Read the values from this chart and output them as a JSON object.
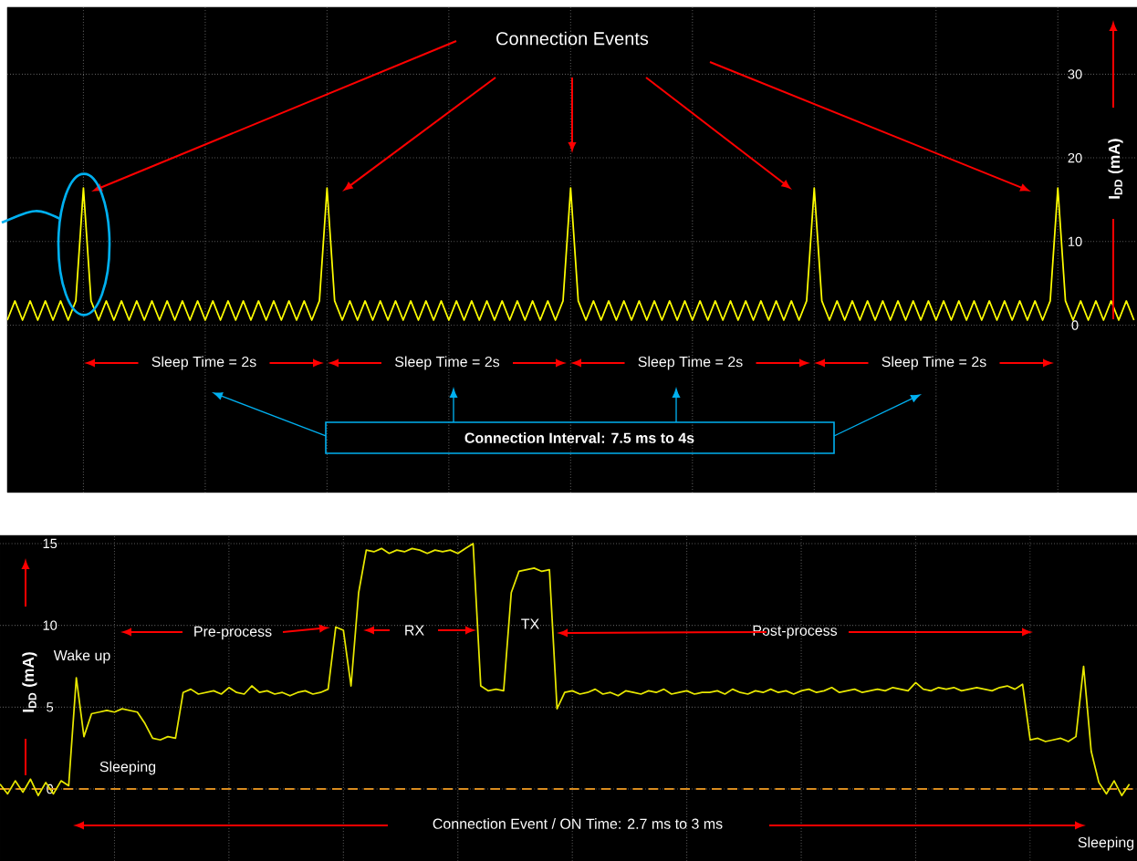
{
  "chart_data": [
    {
      "type": "line",
      "categories": [
        null,
        null,
        null,
        null,
        null,
        null,
        null,
        null,
        null,
        null,
        null,
        null,
        null,
        null,
        null,
        null,
        null,
        null,
        null,
        null,
        null,
        null,
        null,
        null,
        null,
        null,
        null,
        null,
        null,
        null,
        null,
        null,
        null,
        null,
        null,
        null,
        null,
        null,
        null,
        null,
        null,
        null,
        null,
        null,
        null,
        null,
        null,
        null,
        null,
        null,
        null,
        null,
        null,
        null,
        null,
        null,
        null,
        null,
        null,
        null,
        null,
        null,
        null,
        null,
        null,
        null,
        null,
        null,
        null,
        null,
        null,
        null,
        null,
        null,
        null,
        null,
        null,
        null,
        null,
        null,
        null,
        null,
        null,
        null,
        null,
        null,
        null,
        null,
        null,
        null,
        null,
        null,
        null,
        null,
        null,
        null,
        null,
        null,
        null,
        null,
        null,
        null,
        null,
        null,
        null,
        null,
        null,
        null,
        null,
        null,
        null,
        null,
        null,
        null,
        null,
        null,
        null,
        null,
        null,
        null,
        null,
        null,
        null,
        null,
        null,
        null,
        null,
        null,
        null,
        null,
        null,
        null,
        null,
        null,
        null,
        null,
        null,
        null,
        null,
        null,
        null,
        null,
        null,
        null,
        null,
        null,
        null,
        null,
        null
      ],
      "series": [
        {
          "color": "#ffff00",
          "values": [
            0.6,
            2.9,
            0.6,
            2.9,
            0.6,
            2.9,
            0.6,
            2.9,
            0.6,
            2.9,
            16.4,
            2.9,
            0.6,
            2.9,
            0.6,
            2.9,
            0.6,
            2.9,
            0.6,
            2.9,
            0.6,
            2.9,
            0.6,
            2.9,
            0.6,
            2.9,
            0.6,
            2.9,
            0.6,
            2.9,
            0.6,
            2.9,
            0.6,
            2.9,
            0.6,
            2.9,
            0.6,
            2.9,
            0.6,
            2.9,
            0.6,
            2.9,
            16.4,
            2.9,
            0.6,
            2.9,
            0.6,
            2.9,
            0.6,
            2.9,
            0.6,
            2.9,
            0.6,
            2.9,
            0.6,
            2.9,
            0.6,
            2.9,
            0.6,
            2.9,
            0.6,
            2.9,
            0.6,
            2.9,
            0.6,
            2.9,
            0.6,
            2.9,
            0.6,
            2.9,
            0.6,
            2.9,
            0.6,
            2.9,
            16.4,
            2.9,
            0.6,
            2.9,
            0.6,
            2.9,
            0.6,
            2.9,
            0.6,
            2.9,
            0.6,
            2.9,
            0.6,
            2.9,
            0.6,
            2.9,
            0.6,
            2.9,
            0.6,
            2.9,
            0.6,
            2.9,
            0.6,
            2.9,
            0.6,
            2.9,
            0.6,
            2.9,
            0.6,
            2.9,
            0.6,
            2.9,
            16.4,
            2.9,
            0.6,
            2.9,
            0.6,
            2.9,
            0.6,
            2.9,
            0.6,
            2.9,
            0.6,
            2.9,
            0.6,
            2.9,
            0.6,
            2.9,
            0.6,
            2.9,
            0.6,
            2.9,
            0.6,
            2.9,
            0.6,
            2.9,
            0.6,
            2.9,
            0.6,
            2.9,
            0.6,
            2.9,
            0.6,
            2.9,
            16.4,
            2.9,
            0.6,
            2.9,
            0.6,
            2.9,
            0.6,
            2.9,
            0.6,
            2.9,
            0.6
          ]
        }
      ],
      "ylabel": "I$_{DD}$ (mA)",
      "ylim": [
        -20,
        38
      ],
      "yticks": [
        0,
        10,
        20,
        30
      ],
      "grid": true,
      "marker": "none",
      "tick_labels": "y",
      "annotations": [
        "Connection Events",
        "Sleep Time = 2s",
        "Sleep Time = 2s",
        "Sleep Time = 2s",
        "Sleep Time = 2s",
        "Connection Interval: 7.5 ms to 4s"
      ]
    },
    {
      "type": "line",
      "categories": [
        null,
        null,
        null,
        null,
        null,
        null,
        null,
        null,
        null,
        null,
        null,
        null,
        null,
        null,
        null,
        null,
        null,
        null,
        null,
        null,
        null,
        null,
        null,
        null,
        null,
        null,
        null,
        null,
        null,
        null,
        null,
        null,
        null,
        null,
        null,
        null,
        null,
        null,
        null,
        null,
        null,
        null,
        null,
        null,
        null,
        null,
        null,
        null,
        null,
        null,
        null,
        null,
        null,
        null,
        null,
        null,
        null,
        null,
        null,
        null,
        null,
        null,
        null,
        null,
        null,
        null,
        null,
        null,
        null,
        null,
        null,
        null,
        null,
        null,
        null,
        null,
        null,
        null,
        null,
        null,
        null,
        null,
        null,
        null,
        null,
        null,
        null,
        null,
        null,
        null,
        null,
        null,
        null,
        null,
        null,
        null,
        null,
        null,
        null,
        null,
        null,
        null,
        null,
        null,
        null,
        null,
        null,
        null,
        null,
        null,
        null,
        null,
        null,
        null,
        null,
        null,
        null,
        null,
        null,
        null,
        null,
        null,
        null,
        null,
        null,
        null,
        null,
        null,
        null,
        null,
        null,
        null,
        null,
        null,
        null,
        null,
        null,
        null,
        null,
        null,
        null,
        null,
        null,
        null,
        null,
        null,
        null,
        null,
        null
      ],
      "series": [
        {
          "color": "#e8e800",
          "values": [
            0.3,
            -0.3,
            0.5,
            -0.2,
            0.6,
            -0.4,
            0.4,
            -0.3,
            0.5,
            0.2,
            6.8,
            3.2,
            4.6,
            4.7,
            4.8,
            4.7,
            4.9,
            4.8,
            4.7,
            4.0,
            3.1,
            3.0,
            3.2,
            3.1,
            5.9,
            6.1,
            5.8,
            5.9,
            6.0,
            5.8,
            6.2,
            5.9,
            5.8,
            6.3,
            5.9,
            6.0,
            5.8,
            5.9,
            5.7,
            5.9,
            6.0,
            5.8,
            5.9,
            6.1,
            9.9,
            9.7,
            6.3,
            12.0,
            14.6,
            14.5,
            14.7,
            14.4,
            14.6,
            14.5,
            14.7,
            14.6,
            14.4,
            14.6,
            14.5,
            14.6,
            14.4,
            14.7,
            15.0,
            6.3,
            6.0,
            6.1,
            6.0,
            12.0,
            13.3,
            13.4,
            13.5,
            13.3,
            13.4,
            4.9,
            5.9,
            6.0,
            5.8,
            5.9,
            6.1,
            5.8,
            5.9,
            5.7,
            6.0,
            5.9,
            5.8,
            6.0,
            5.9,
            6.1,
            5.8,
            5.9,
            6.0,
            5.8,
            5.9,
            5.9,
            6.0,
            5.8,
            6.1,
            5.9,
            5.8,
            6.0,
            5.9,
            6.1,
            5.9,
            6.0,
            5.8,
            6.0,
            6.1,
            5.9,
            6.0,
            6.2,
            5.9,
            6.0,
            6.1,
            5.9,
            6.0,
            6.1,
            6.0,
            6.2,
            6.1,
            6.0,
            6.5,
            6.1,
            6.0,
            6.2,
            6.1,
            6.2,
            6.0,
            6.1,
            6.2,
            6.1,
            6.0,
            6.2,
            6.3,
            6.1,
            6.4,
            3.0,
            3.1,
            2.9,
            3.0,
            3.1,
            2.9,
            3.2,
            7.5,
            2.3,
            0.4,
            -0.3,
            0.5,
            -0.4,
            0.3
          ]
        }
      ],
      "ylabel": "I$_{DD}$ (mA)",
      "ylim": [
        -4.4,
        15.5
      ],
      "yticks": [
        0,
        5,
        10,
        15
      ],
      "grid": true,
      "marker": "none",
      "tick_labels": "y",
      "ref_lines": [
        {
          "axis": "y",
          "value": 0,
          "color": "#d98c1f",
          "line_style": "dashed"
        }
      ],
      "annotations": [
        "Wake up",
        "Sleeping",
        "Pre-process",
        "RX",
        "TX",
        "Post-process",
        "Sleeping",
        "Connection Event / ON Time: 2.7 ms to 3 ms"
      ]
    }
  ]
}
